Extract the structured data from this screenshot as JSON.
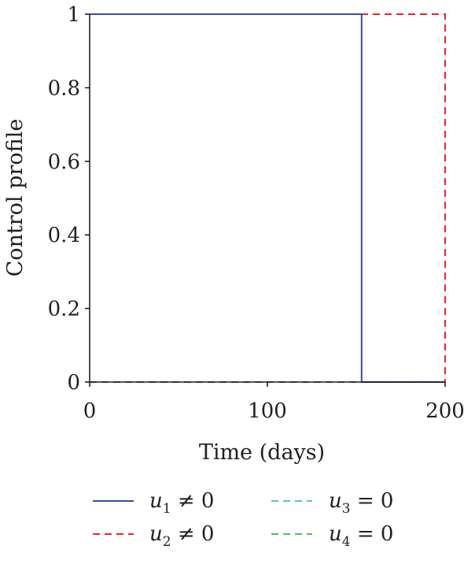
{
  "chart_data": {
    "type": "line",
    "title": "",
    "xlabel": "Time (days)",
    "ylabel": "Control profile",
    "xlim": [
      0,
      200
    ],
    "ylim": [
      0,
      1
    ],
    "xticks": [
      0,
      100,
      200
    ],
    "xtick_labels": [
      "0",
      "100",
      "200"
    ],
    "yticks": [
      0,
      0.2,
      0.4,
      0.6,
      0.8,
      1
    ],
    "ytick_labels": [
      "0",
      "0.2",
      "0.4",
      "0.6",
      "0.8",
      "1"
    ],
    "grid": false,
    "legend_position": "bottom",
    "series": [
      {
        "name_var": "u",
        "name_sub": "1",
        "name_rel": "≠ 0",
        "color": "#3b4ea0",
        "dash": "solid",
        "x": [
          0,
          153,
          153,
          200
        ],
        "y": [
          1,
          1,
          0,
          0
        ]
      },
      {
        "name_var": "u",
        "name_sub": "2",
        "name_rel": "≠ 0",
        "color": "#e8262d",
        "dash": "dashed",
        "x": [
          0,
          200,
          200
        ],
        "y": [
          1,
          1,
          0
        ]
      },
      {
        "name_var": "u",
        "name_sub": "3",
        "name_rel": "= 0",
        "color": "#5bc0c4",
        "dash": "dashed",
        "x": [
          0,
          200
        ],
        "y": [
          0,
          0
        ]
      },
      {
        "name_var": "u",
        "name_sub": "4",
        "name_rel": "= 0",
        "color": "#5cb85c",
        "dash": "dashed",
        "x": [
          0,
          200
        ],
        "y": [
          0,
          0
        ]
      }
    ]
  }
}
